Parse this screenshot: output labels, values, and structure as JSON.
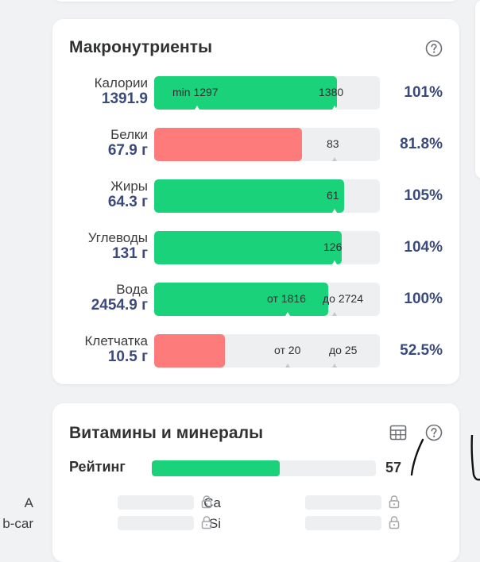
{
  "macros": {
    "title": "Макронутриенты",
    "rows": [
      {
        "name": "Калории",
        "amount": "1391.9",
        "percent": "101%",
        "fill": 0.81,
        "color": "#19d27a",
        "labels": [
          {
            "text": "min 1297",
            "pos": 0.08
          },
          {
            "text": "1380",
            "pos": 0.73
          }
        ],
        "ticks": [
          {
            "pos": 0.19,
            "style": "white"
          },
          {
            "pos": 0.8,
            "style": "white"
          }
        ]
      },
      {
        "name": "Белки",
        "amount": "67.9 г",
        "percent": "81.8%",
        "fill": 0.655,
        "color": "#fd7b7b",
        "labels": [
          {
            "text": "83",
            "pos": 0.765
          }
        ],
        "ticks": [
          {
            "pos": 0.8,
            "style": "grey"
          }
        ]
      },
      {
        "name": "Жиры",
        "amount": "64.3 г",
        "percent": "105%",
        "fill": 0.84,
        "color": "#19d27a",
        "labels": [
          {
            "text": "61",
            "pos": 0.765
          }
        ],
        "ticks": [
          {
            "pos": 0.8,
            "style": "white"
          }
        ]
      },
      {
        "name": "Углеводы",
        "amount": "131 г",
        "percent": "104%",
        "fill": 0.83,
        "color": "#19d27a",
        "labels": [
          {
            "text": "126",
            "pos": 0.75
          }
        ],
        "ticks": [
          {
            "pos": 0.8,
            "style": "white"
          }
        ]
      },
      {
        "name": "Вода",
        "amount": "2454.9 г",
        "percent": "100%",
        "fill": 0.77,
        "color": "#19d27a",
        "labels": [
          {
            "text": "от 1816",
            "pos": 0.5
          },
          {
            "text": "до 2724",
            "pos": 0.745
          }
        ],
        "ticks": [
          {
            "pos": 0.59,
            "style": "white"
          },
          {
            "pos": 0.8,
            "style": "grey"
          }
        ]
      },
      {
        "name": "Клетчатка",
        "amount": "10.5 г",
        "percent": "52.5%",
        "fill": 0.315,
        "color": "#fd7b7b",
        "labels": [
          {
            "text": "от 20",
            "pos": 0.53
          },
          {
            "text": "до 25",
            "pos": 0.775
          }
        ],
        "ticks": [
          {
            "pos": 0.59,
            "style": "grey"
          },
          {
            "pos": 0.8,
            "style": "grey"
          }
        ]
      }
    ]
  },
  "vitamins": {
    "title": "Витамины и минералы",
    "rating_label": "Рейтинг",
    "rating_value": "57",
    "rating_fill": 0.57,
    "left_column": [
      "A",
      "b-car"
    ],
    "right_column": [
      "Ca",
      "Si"
    ]
  },
  "colors": {
    "accent_green": "#19d27a",
    "accent_red": "#fd7b7b",
    "value_blue": "#3b4a7c"
  },
  "icons": [
    "help-circle-icon",
    "table-grid-icon",
    "lock-icon"
  ]
}
